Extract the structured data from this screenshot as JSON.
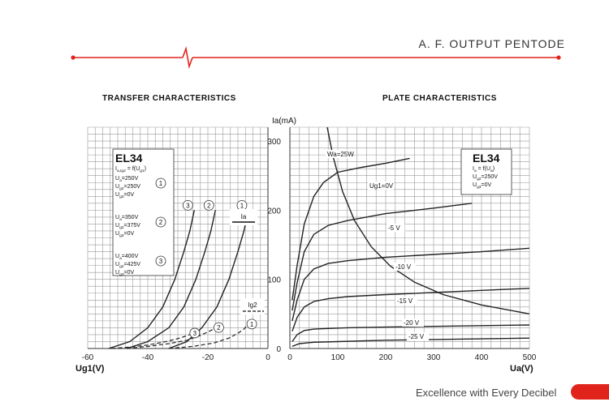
{
  "header": {
    "title": "A. F. OUTPUT PENTODE",
    "accent": "#e0241b"
  },
  "footer": {
    "tagline": "Excellence with Every Decibel",
    "accent": "#e0241b"
  },
  "chart_data": [
    {
      "type": "line",
      "title": "TRANSFER CHARACTERISTICS",
      "xlabel": "Ug1(V)",
      "ylabel": "",
      "xlim": [
        -60,
        0
      ],
      "ylim": [
        0,
        320
      ],
      "xticks": [
        -60,
        -40,
        -20,
        0
      ],
      "grid": true,
      "legend_box": {
        "tube": "EL34",
        "formula": [
          "I",
          "a,Ig2",
          " = f(U",
          "g1",
          ")"
        ],
        "groups": [
          {
            "marker": "1",
            "lines": [
              [
                "U",
                "a",
                "=250V"
              ],
              [
                "U",
                "g2",
                "=250V"
              ],
              [
                "U",
                "g3",
                "=0V"
              ]
            ]
          },
          {
            "marker": "2",
            "lines": [
              [
                "U",
                "a",
                "=350V"
              ],
              [
                "U",
                "g2",
                "=375V"
              ],
              [
                "U",
                "g3",
                "=0V"
              ]
            ]
          },
          {
            "marker": "3",
            "lines": [
              [
                "U",
                "a",
                "=400V"
              ],
              [
                "U",
                "g2",
                "=425V"
              ],
              [
                "U",
                "g3",
                "=0V"
              ]
            ]
          }
        ]
      },
      "annotations": {
        "ia": "Ia",
        "ig2": "Ig2"
      },
      "series": [
        {
          "name": "1",
          "kind": "Ia",
          "style": "solid",
          "x": [
            -33,
            -27,
            -22,
            -17,
            -13,
            -10,
            -8,
            -6.5
          ],
          "y": [
            0,
            10,
            30,
            60,
            100,
            140,
            170,
            200
          ]
        },
        {
          "name": "2",
          "kind": "Ia",
          "style": "solid",
          "x": [
            -47,
            -40,
            -33,
            -28,
            -24,
            -21,
            -19,
            -17.5
          ],
          "y": [
            0,
            10,
            30,
            60,
            100,
            140,
            170,
            200
          ]
        },
        {
          "name": "3",
          "kind": "Ia",
          "style": "solid",
          "x": [
            -53,
            -46,
            -40,
            -35,
            -31,
            -28,
            -26,
            -24.5
          ],
          "y": [
            0,
            10,
            30,
            60,
            100,
            140,
            170,
            200
          ]
        },
        {
          "name": "1",
          "kind": "Ig2",
          "style": "dashed",
          "x": [
            -33,
            -25,
            -18,
            -13,
            -10,
            -8,
            -7
          ],
          "y": [
            0,
            3,
            8,
            15,
            22,
            28,
            33
          ]
        },
        {
          "name": "2",
          "kind": "Ig2",
          "style": "dashed",
          "x": [
            -47,
            -40,
            -33,
            -27,
            -23,
            -20,
            -18
          ],
          "y": [
            0,
            3,
            7,
            12,
            18,
            24,
            28
          ]
        },
        {
          "name": "3",
          "kind": "Ig2",
          "style": "dashed",
          "x": [
            -52,
            -46,
            -40,
            -35,
            -31,
            -28,
            -26
          ],
          "y": [
            0,
            2,
            5,
            9,
            13,
            17,
            20
          ]
        }
      ]
    },
    {
      "type": "line",
      "title": "PLATE CHARACTERISTICS",
      "xlabel": "Ua(V)",
      "ylabel": "Ia(mA)",
      "xlim": [
        0,
        500
      ],
      "ylim": [
        0,
        320
      ],
      "xticks": [
        0,
        100,
        200,
        300,
        400,
        500
      ],
      "yticks": [
        0,
        100,
        200,
        300
      ],
      "grid": true,
      "legend_box": {
        "tube": "EL34",
        "lines": [
          [
            "I",
            "a",
            " = f(U",
            "a",
            ")"
          ],
          [
            "U",
            "g2",
            "=250V"
          ],
          [
            "U",
            "g3",
            "=0V"
          ]
        ]
      },
      "series": [
        {
          "name": "Ug1=0V",
          "x": [
            5,
            15,
            30,
            50,
            70,
            100,
            150,
            200,
            250
          ],
          "y": [
            70,
            120,
            180,
            220,
            240,
            255,
            262,
            268,
            275
          ]
        },
        {
          "name": "-5 V",
          "x": [
            5,
            15,
            30,
            50,
            80,
            120,
            200,
            300,
            380
          ],
          "y": [
            55,
            95,
            140,
            165,
            178,
            185,
            195,
            203,
            210
          ]
        },
        {
          "name": "-10 V",
          "x": [
            5,
            15,
            30,
            50,
            80,
            120,
            200,
            300,
            400,
            500
          ],
          "y": [
            40,
            70,
            100,
            115,
            123,
            127,
            132,
            136,
            140,
            145
          ]
        },
        {
          "name": "-15 V",
          "x": [
            5,
            15,
            30,
            50,
            80,
            120,
            200,
            300,
            400,
            500
          ],
          "y": [
            25,
            45,
            60,
            68,
            72,
            75,
            78,
            81,
            84,
            87
          ]
        },
        {
          "name": "-20 V",
          "x": [
            5,
            15,
            30,
            50,
            80,
            120,
            200,
            300,
            400,
            500
          ],
          "y": [
            10,
            20,
            26,
            28,
            29,
            30,
            31,
            32,
            33,
            34
          ]
        },
        {
          "name": "-25 V",
          "x": [
            5,
            20,
            50,
            100,
            200,
            300,
            400,
            500
          ],
          "y": [
            3,
            7,
            9,
            10,
            12,
            13,
            14,
            15
          ]
        },
        {
          "name": "Wa=25W",
          "style": "dissipation",
          "x": [
            78,
            90,
            110,
            135,
            170,
            210,
            260,
            320,
            400,
            500
          ],
          "y": [
            320,
            278,
            227,
            185,
            147,
            119,
            96,
            78,
            63,
            50
          ]
        }
      ]
    }
  ]
}
